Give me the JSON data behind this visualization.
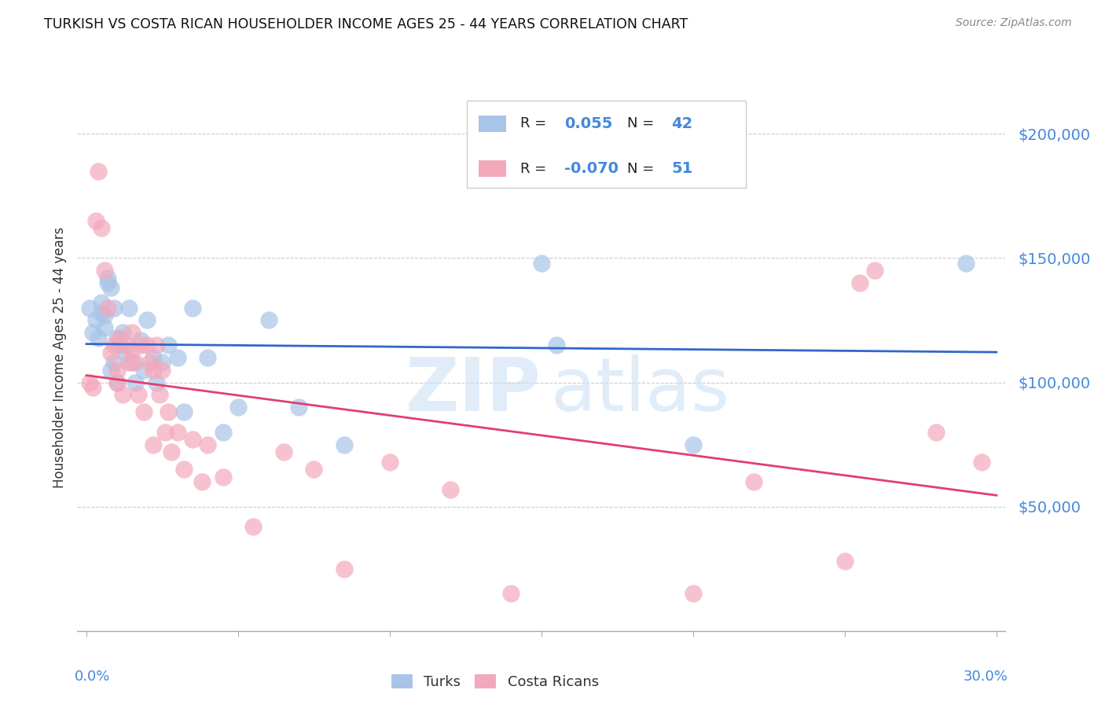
{
  "title": "TURKISH VS COSTA RICAN HOUSEHOLDER INCOME AGES 25 - 44 YEARS CORRELATION CHART",
  "source": "Source: ZipAtlas.com",
  "ylabel": "Householder Income Ages 25 - 44 years",
  "ytick_labels": [
    "$50,000",
    "$100,000",
    "$150,000",
    "$200,000"
  ],
  "ytick_values": [
    50000,
    100000,
    150000,
    200000
  ],
  "ymin": 0,
  "ymax": 220000,
  "xmin": 0.0,
  "xmax": 0.3,
  "turks_R": "0.055",
  "turks_N": "42",
  "costa_R": "-0.070",
  "costa_N": "51",
  "turks_color": "#a8c4e8",
  "costa_color": "#f4a8bc",
  "trend_turks_color": "#3366cc",
  "trend_costa_color": "#e04070",
  "background_color": "#ffffff",
  "grid_color": "#cccccc",
  "axis_label_color": "#4488dd",
  "text_color": "#333333",
  "source_color": "#888888",
  "turks_x": [
    0.001,
    0.002,
    0.003,
    0.004,
    0.005,
    0.005,
    0.006,
    0.006,
    0.007,
    0.007,
    0.008,
    0.008,
    0.009,
    0.009,
    0.01,
    0.01,
    0.011,
    0.012,
    0.013,
    0.014,
    0.015,
    0.016,
    0.018,
    0.019,
    0.02,
    0.022,
    0.023,
    0.025,
    0.027,
    0.03,
    0.032,
    0.035,
    0.04,
    0.045,
    0.05,
    0.06,
    0.07,
    0.085,
    0.15,
    0.155,
    0.2,
    0.29
  ],
  "turks_y": [
    130000,
    120000,
    125000,
    118000,
    132000,
    128000,
    127000,
    122000,
    140000,
    142000,
    138000,
    105000,
    130000,
    108000,
    118000,
    100000,
    115000,
    120000,
    112000,
    130000,
    108000,
    100000,
    117000,
    105000,
    125000,
    110000,
    100000,
    108000,
    115000,
    110000,
    88000,
    130000,
    110000,
    80000,
    90000,
    125000,
    90000,
    75000,
    148000,
    115000,
    75000,
    148000
  ],
  "costa_x": [
    0.001,
    0.002,
    0.003,
    0.004,
    0.005,
    0.006,
    0.007,
    0.008,
    0.009,
    0.01,
    0.01,
    0.011,
    0.012,
    0.013,
    0.014,
    0.015,
    0.015,
    0.016,
    0.017,
    0.018,
    0.019,
    0.02,
    0.021,
    0.022,
    0.022,
    0.023,
    0.024,
    0.025,
    0.026,
    0.027,
    0.028,
    0.03,
    0.032,
    0.035,
    0.038,
    0.04,
    0.045,
    0.055,
    0.065,
    0.075,
    0.085,
    0.1,
    0.12,
    0.14,
    0.2,
    0.22,
    0.25,
    0.255,
    0.26,
    0.28,
    0.295
  ],
  "costa_y": [
    100000,
    98000,
    165000,
    185000,
    162000,
    145000,
    130000,
    112000,
    115000,
    100000,
    105000,
    118000,
    95000,
    115000,
    108000,
    120000,
    113000,
    108000,
    95000,
    115000,
    88000,
    115000,
    108000,
    75000,
    105000,
    115000,
    95000,
    105000,
    80000,
    88000,
    72000,
    80000,
    65000,
    77000,
    60000,
    75000,
    62000,
    42000,
    72000,
    65000,
    25000,
    68000,
    57000,
    15000,
    15000,
    60000,
    28000,
    140000,
    145000,
    80000,
    68000
  ]
}
